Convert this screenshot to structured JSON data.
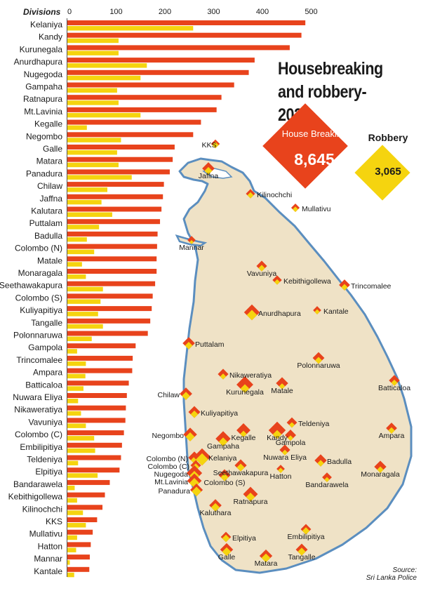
{
  "chart_data": {
    "type": "bar",
    "title": "Housebreaking and robbery-2022",
    "yheader": "Divisions",
    "xlim": [
      0,
      500
    ],
    "xticks": [
      0,
      100,
      200,
      300,
      400,
      500
    ],
    "grid": false,
    "categories": [
      "Kelaniya",
      "Kandy",
      "Kurunegala",
      "Anurdhapura",
      "Nugegoda",
      "Gampaha",
      "Ratnapura",
      "Mt.Lavinia",
      "Kegalle",
      "Negombo",
      "Galle",
      "Matara",
      "Panadura",
      "Chilaw",
      "Jaffna",
      "Kalutara",
      "Puttalam",
      "Badulla",
      "Colombo (N)",
      "Matale",
      "Monaragala",
      "Seethawakapura",
      "Colombo (S)",
      "Kuliyapitiya",
      "Tangalle",
      "Polonnaruwa",
      "Gampola",
      "Trincomalee",
      "Ampara",
      "Batticaloa",
      "Nuwara Eliya",
      "Nikaweratiya",
      "Vavuniya",
      "Colombo (C)",
      "Embilipitiya",
      "Teldeniya",
      "Elpitiya",
      "Bandarawela",
      "Kebithigollewa",
      "Kilinochchi",
      "KKS",
      "Mullativu",
      "Hatton",
      "Mannar",
      "Kantale"
    ],
    "series": [
      {
        "name": "House Breaking",
        "color": "#e8431c",
        "values": [
          488,
          480,
          456,
          384,
          372,
          342,
          316,
          306,
          274,
          258,
          220,
          216,
          210,
          198,
          196,
          193,
          190,
          185,
          184,
          183,
          183,
          180,
          175,
          173,
          170,
          165,
          140,
          134,
          133,
          126,
          122,
          120,
          119,
          116,
          112,
          110,
          107,
          87,
          77,
          72,
          61,
          52,
          48,
          46,
          45
        ]
      },
      {
        "name": "Robbery",
        "color": "#f5d40f",
        "values": [
          258,
          105,
          105,
          163,
          150,
          102,
          105,
          150,
          40,
          110,
          102,
          105,
          132,
          82,
          70,
          92,
          65,
          40,
          55,
          30,
          38,
          73,
          68,
          63,
          73,
          50,
          20,
          38,
          37,
          33,
          22,
          28,
          38,
          55,
          57,
          22,
          62,
          15,
          20,
          32,
          38,
          20,
          18,
          5,
          14
        ]
      }
    ]
  },
  "summary": {
    "house_breaking_label": "House Breaking",
    "house_breaking_value": "8,645",
    "robbery_label": "Robbery",
    "robbery_value": "3,065"
  },
  "map": {
    "places": [
      "KKS",
      "Jaffna",
      "Kilinochchi",
      "Mullativu",
      "Mannar",
      "Vavuniya",
      "Kebithigollewa",
      "Trincomalee",
      "Anurdhapura",
      "Kantale",
      "Puttalam",
      "Polonnaruwa",
      "Nikaweratiya",
      "Batticaloa",
      "Kurunegala",
      "Matale",
      "Chilaw",
      "Kuliyapitiya",
      "Teldeniya",
      "Negombo",
      "Kegalle",
      "Kandy",
      "Gampola",
      "Ampara",
      "Gampaha",
      "Colombo (N)",
      "Kelaniya",
      "Colombo (C)",
      "Nugegoda",
      "Nuwara Eliya",
      "Badulla",
      "Seethawakapura",
      "Mt.Lavinia",
      "Hatton",
      "Monaragala",
      "Colombo (S)",
      "Bandarawela",
      "Panadura",
      "Ratnapura",
      "Kaluthara",
      "Embilipitiya",
      "Elpitiya",
      "Galle",
      "Tangalle",
      "Matara"
    ]
  },
  "source": {
    "label": "Source:",
    "text": "Sri Lanka Police"
  }
}
